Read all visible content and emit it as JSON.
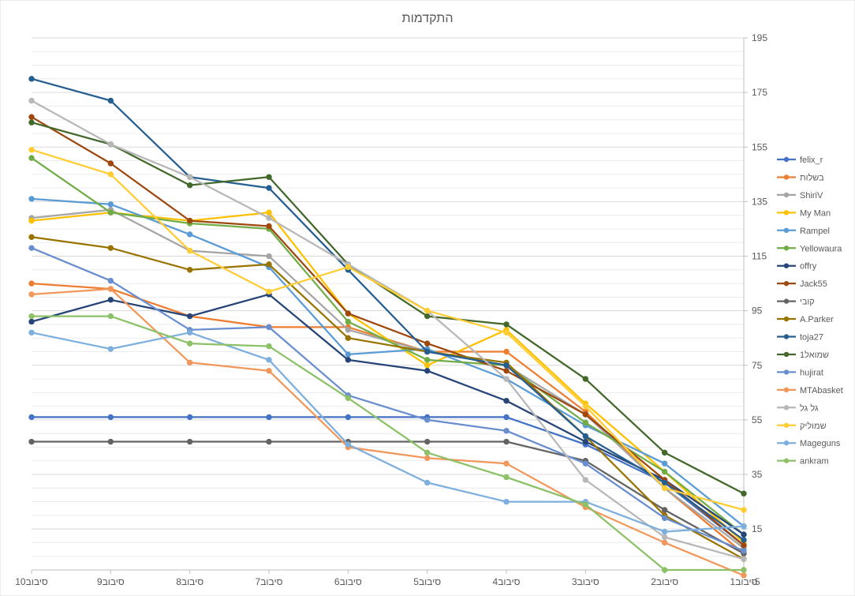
{
  "chart_data": {
    "type": "line",
    "title": "התקדמות",
    "categories": [
      "סיבוב1",
      "סיבוב2",
      "סיבוב3",
      "סיבוב4",
      "סיבוב5",
      "סיבוב6",
      "סיבוב7",
      "סיבוב8",
      "סיבוב9",
      "סיבוב10"
    ],
    "y_ticks": [
      15,
      35,
      55,
      75,
      95,
      115,
      135,
      155,
      175,
      195
    ],
    "ylim": [
      0,
      195
    ],
    "extra_tick_label": "-5",
    "x_reversed": true,
    "y_axis_side": "right",
    "grid": true,
    "legend_position": "right",
    "series": [
      {
        "name": "felix_r",
        "color": "#4472C4",
        "values": [
          9,
          32,
          46,
          56,
          56,
          56,
          56,
          56,
          56,
          56
        ]
      },
      {
        "name": "בשלות",
        "color": "#ED7D31",
        "values": [
          6,
          30,
          58,
          80,
          80,
          89,
          89,
          93,
          103,
          105
        ]
      },
      {
        "name": "ShiriV",
        "color": "#A5A5A5",
        "values": [
          8,
          30,
          57,
          75,
          80,
          88,
          115,
          117,
          132,
          129
        ]
      },
      {
        "name": "My Man",
        "color": "#FFC000",
        "values": [
          10,
          36,
          61,
          88,
          75,
          94,
          131,
          128,
          131,
          128
        ]
      },
      {
        "name": "Rampel",
        "color": "#5B9BD5",
        "values": [
          16,
          39,
          53,
          70,
          81,
          79,
          111,
          123,
          134,
          136
        ]
      },
      {
        "name": "Yellowaura",
        "color": "#70AD47",
        "values": [
          13,
          36,
          54,
          75,
          77,
          91,
          125,
          127,
          131,
          151
        ]
      },
      {
        "name": "offry",
        "color": "#264478",
        "values": [
          13,
          33,
          47,
          62,
          73,
          77,
          101,
          93,
          99,
          91
        ]
      },
      {
        "name": "Jack55",
        "color": "#9E480E",
        "values": [
          9,
          33,
          57,
          73,
          83,
          94,
          126,
          128,
          149,
          166
        ]
      },
      {
        "name": "קובי",
        "color": "#636363",
        "values": [
          6,
          22,
          40,
          47,
          47,
          47,
          47,
          47,
          47,
          47
        ]
      },
      {
        "name": "A.Parker",
        "color": "#997300",
        "values": [
          4,
          20,
          49,
          76,
          80,
          85,
          112,
          110,
          118,
          122
        ]
      },
      {
        "name": "toja27",
        "color": "#255E91",
        "values": [
          11,
          32,
          49,
          75,
          80,
          110,
          140,
          144,
          172,
          180
        ]
      },
      {
        "name": "שמואל1",
        "color": "#43682B",
        "values": [
          28,
          43,
          70,
          90,
          93,
          112,
          144,
          141,
          156,
          164
        ]
      },
      {
        "name": "hujirat",
        "color": "#698ED0",
        "values": [
          7,
          19,
          39,
          51,
          55,
          64,
          89,
          88,
          106,
          118
        ]
      },
      {
        "name": "MTAbasket",
        "color": "#F1975A",
        "values": [
          -2,
          10,
          23,
          39,
          41,
          45,
          73,
          76,
          103,
          101
        ]
      },
      {
        "name": "גל גל",
        "color": "#B7B7B7",
        "values": [
          4,
          12,
          33,
          70,
          95,
          112,
          129,
          144,
          156,
          172
        ]
      },
      {
        "name": "שמוליק",
        "color": "#FFCD33",
        "values": [
          22,
          30,
          60,
          87,
          95,
          111,
          102,
          117,
          145,
          154
        ]
      },
      {
        "name": "Mageguns",
        "color": "#7CAFDD",
        "values": [
          16,
          14,
          25,
          25,
          32,
          46,
          77,
          87,
          81,
          87
        ]
      },
      {
        "name": "ankram",
        "color": "#8CC168",
        "values": [
          0,
          0,
          24,
          34,
          43,
          63,
          82,
          83,
          93,
          93
        ]
      }
    ]
  }
}
